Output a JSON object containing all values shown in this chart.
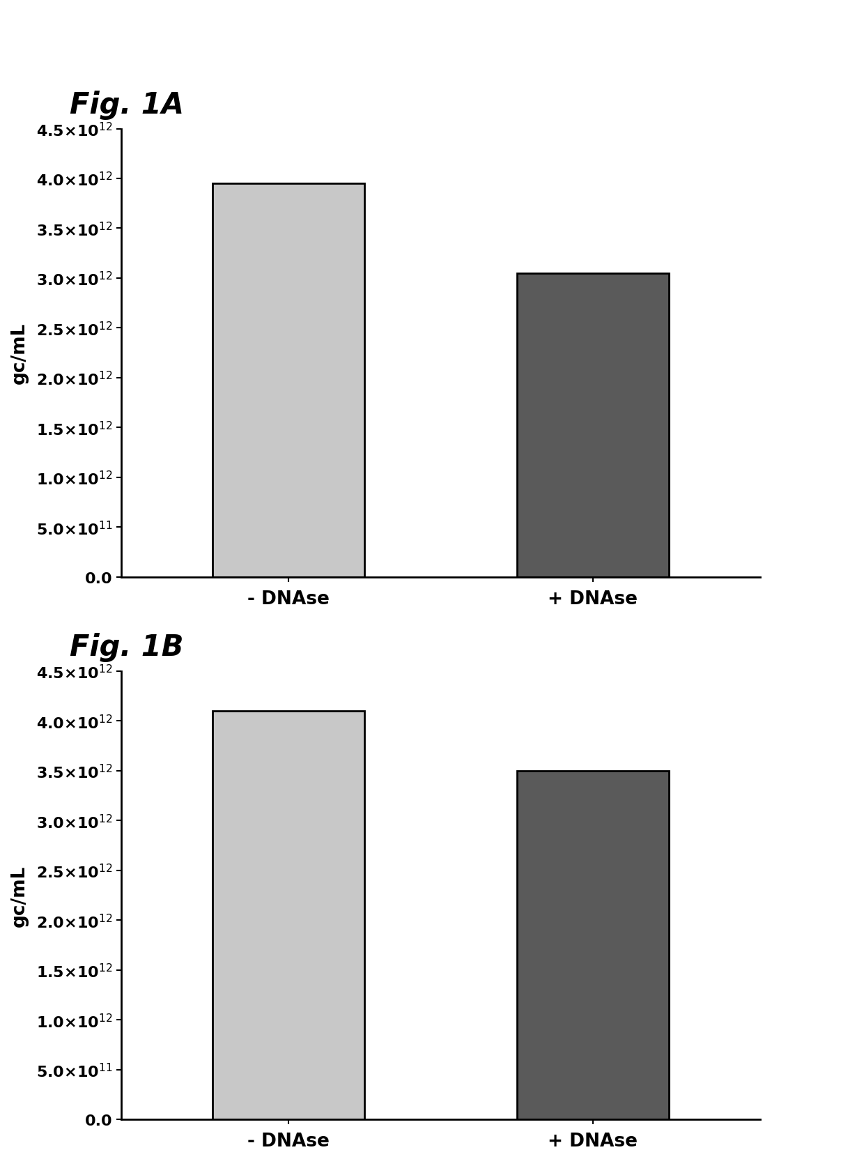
{
  "fig1A": {
    "title": "Fig. 1A",
    "categories": [
      "- DNAse",
      "+ DNAse"
    ],
    "values": [
      3950000000000.0,
      3050000000000.0
    ],
    "bar_colors": [
      "#c8c8c8",
      "#5a5a5a"
    ],
    "ylabel": "gc/mL",
    "ylim": [
      0,
      4500000000000.0
    ],
    "yticks": [
      0,
      500000000000.0,
      1000000000000.0,
      1500000000000.0,
      2000000000000.0,
      2500000000000.0,
      3000000000000.0,
      3500000000000.0,
      4000000000000.0,
      4500000000000.0
    ]
  },
  "fig1B": {
    "title": "Fig. 1B",
    "categories": [
      "- DNAse",
      "+ DNAse"
    ],
    "values": [
      4100000000000.0,
      3500000000000.0
    ],
    "bar_colors": [
      "#c8c8c8",
      "#5a5a5a"
    ],
    "ylabel": "gc/mL",
    "ylim": [
      0,
      4500000000000.0
    ],
    "yticks": [
      0,
      500000000000.0,
      1000000000000.0,
      1500000000000.0,
      2000000000000.0,
      2500000000000.0,
      3000000000000.0,
      3500000000000.0,
      4000000000000.0,
      4500000000000.0
    ]
  },
  "background_color": "#ffffff",
  "bar_edgecolor": "#000000",
  "bar_linewidth": 2.0,
  "bar_width": 0.5,
  "title_fontsize": 30,
  "axis_label_fontsize": 19,
  "tick_label_fontsize": 16,
  "xtick_label_fontsize": 19,
  "spine_linewidth": 2.0
}
